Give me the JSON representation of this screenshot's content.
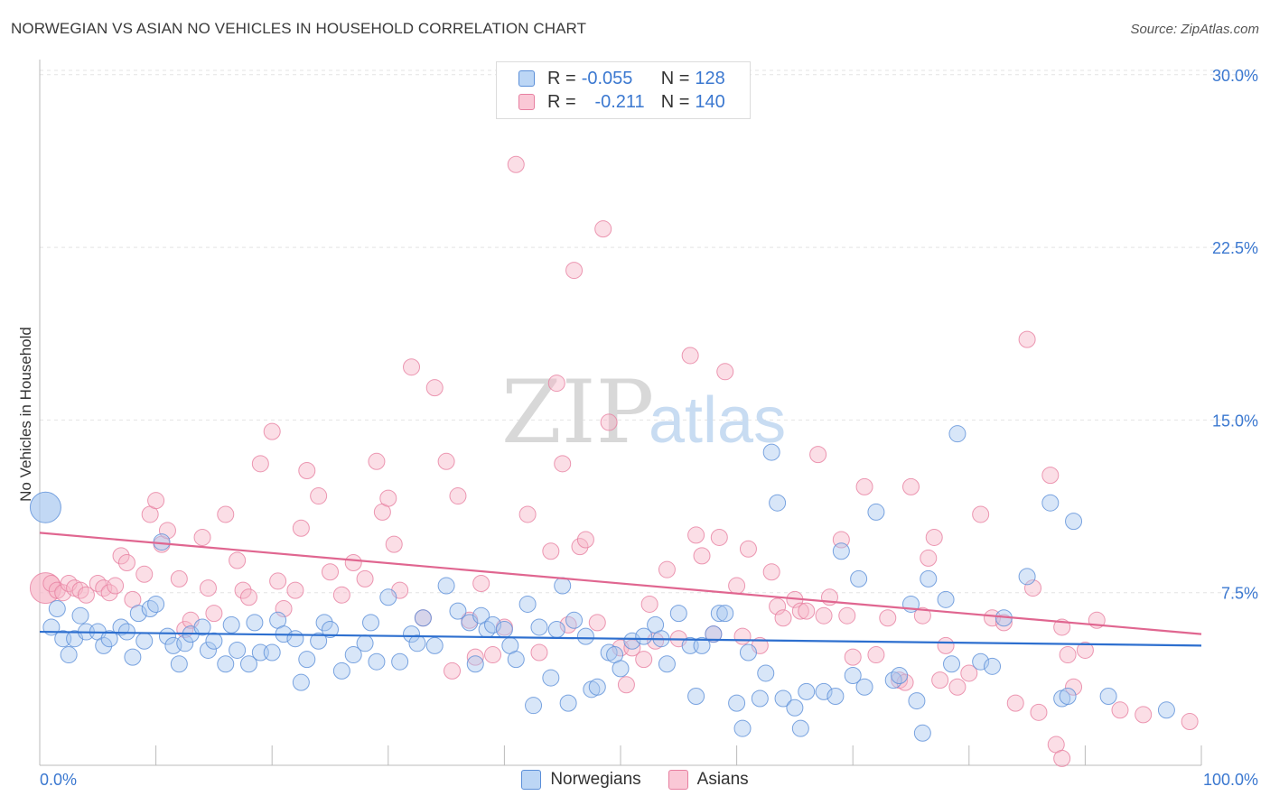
{
  "title": "NORWEGIAN VS ASIAN NO VEHICLES IN HOUSEHOLD CORRELATION CHART",
  "source": "Source: ZipAtlas.com",
  "watermark": {
    "zip": "ZIP",
    "atlas": "atlas"
  },
  "legend_top": [
    {
      "r_label": "R = ",
      "r_value": "-0.055",
      "n_label": "N = ",
      "n_value": "128"
    },
    {
      "r_label": "R = ",
      "r_value": "-0.211",
      "n_label": "N = ",
      "n_value": "140"
    }
  ],
  "colors": {
    "norwegians_fill": "#a8c8f0",
    "norwegians_stroke": "#5b8fd8",
    "norwegians_line": "#2d6fcf",
    "asians_fill": "#f7b6c8",
    "asians_stroke": "#e77fa0",
    "asians_line": "#e06690",
    "axis_label": "#3b78d0",
    "grid": "#e4e4e4"
  },
  "chart_data": {
    "type": "scatter",
    "title": "NORWEGIAN VS ASIAN NO VEHICLES IN HOUSEHOLD CORRELATION CHART",
    "xlabel": "",
    "ylabel": "No Vehicles in Household",
    "xlim": [
      0,
      100
    ],
    "ylim": [
      0,
      30.5
    ],
    "x_tick_labels": [
      "0.0%",
      "100.0%"
    ],
    "y_ticks": [
      7.5,
      15.0,
      22.5,
      30.0
    ],
    "y_tick_labels": [
      "7.5%",
      "15.0%",
      "22.5%",
      "30.0%"
    ],
    "grid": true,
    "legend_position": "bottom",
    "series": [
      {
        "name": "Norwegians",
        "trend": {
          "x0": 0,
          "y0": 5.8,
          "x1": 100,
          "y1": 5.2
        },
        "points": [
          [
            0.5,
            11.2,
            "big"
          ],
          [
            1.0,
            6.0
          ],
          [
            1.5,
            6.8
          ],
          [
            2.0,
            5.5
          ],
          [
            2.5,
            4.8
          ],
          [
            3.0,
            5.5
          ],
          [
            3.5,
            6.5
          ],
          [
            4.0,
            5.8
          ],
          [
            5.0,
            5.8
          ],
          [
            5.5,
            5.2
          ],
          [
            6.0,
            5.5
          ],
          [
            7.0,
            6.0
          ],
          [
            7.5,
            5.8
          ],
          [
            8.0,
            4.7
          ],
          [
            8.5,
            6.6
          ],
          [
            9.0,
            5.4
          ],
          [
            9.5,
            6.8
          ],
          [
            10.0,
            7.0
          ],
          [
            10.5,
            9.7
          ],
          [
            11.0,
            5.6
          ],
          [
            11.5,
            5.2
          ],
          [
            12.0,
            4.4
          ],
          [
            12.5,
            5.3
          ],
          [
            13.0,
            5.7
          ],
          [
            14.0,
            6.0
          ],
          [
            14.5,
            5.0
          ],
          [
            15.0,
            5.4
          ],
          [
            16.0,
            4.4
          ],
          [
            16.5,
            6.1
          ],
          [
            17.0,
            5.0
          ],
          [
            18.0,
            4.4
          ],
          [
            18.5,
            6.2
          ],
          [
            19.0,
            4.9
          ],
          [
            20.0,
            4.9
          ],
          [
            20.5,
            6.3
          ],
          [
            21.0,
            5.7
          ],
          [
            22.0,
            5.5
          ],
          [
            22.5,
            3.6
          ],
          [
            23.0,
            4.6
          ],
          [
            24.0,
            5.4
          ],
          [
            24.5,
            6.2
          ],
          [
            25.0,
            5.9
          ],
          [
            26.0,
            4.1
          ],
          [
            27.0,
            4.8
          ],
          [
            28.0,
            5.3
          ],
          [
            28.5,
            6.2
          ],
          [
            29.0,
            4.5
          ],
          [
            30.0,
            7.3
          ],
          [
            31.0,
            4.5
          ],
          [
            32.0,
            5.7
          ],
          [
            32.5,
            5.3
          ],
          [
            33.0,
            6.4
          ],
          [
            34.0,
            5.2
          ],
          [
            35.0,
            7.8
          ],
          [
            36.0,
            6.7
          ],
          [
            37.0,
            6.2
          ],
          [
            37.5,
            4.4
          ],
          [
            38.0,
            6.5
          ],
          [
            38.5,
            5.9
          ],
          [
            39.0,
            6.1
          ],
          [
            40.0,
            5.9
          ],
          [
            40.5,
            5.2
          ],
          [
            41.0,
            4.6
          ],
          [
            42.0,
            7.0
          ],
          [
            42.5,
            2.6
          ],
          [
            43.0,
            6.0
          ],
          [
            44.0,
            3.8
          ],
          [
            44.5,
            5.9
          ],
          [
            45.0,
            7.8
          ],
          [
            45.5,
            2.7
          ],
          [
            46.0,
            6.3
          ],
          [
            47.0,
            5.6
          ],
          [
            47.5,
            3.3
          ],
          [
            48.0,
            3.4
          ],
          [
            49.0,
            4.9
          ],
          [
            49.5,
            4.8
          ],
          [
            50.0,
            4.2
          ],
          [
            51.0,
            5.4
          ],
          [
            52.0,
            5.6
          ],
          [
            53.0,
            6.1
          ],
          [
            53.5,
            5.5
          ],
          [
            54.0,
            4.4
          ],
          [
            55.0,
            6.6
          ],
          [
            56.0,
            5.2
          ],
          [
            56.5,
            3.0
          ],
          [
            57.0,
            5.2
          ],
          [
            58.0,
            5.7
          ],
          [
            58.5,
            6.6
          ],
          [
            59.0,
            6.6
          ],
          [
            60.0,
            2.7
          ],
          [
            60.5,
            1.6
          ],
          [
            61.0,
            4.9
          ],
          [
            62.0,
            2.9
          ],
          [
            62.5,
            4.0
          ],
          [
            63.0,
            13.6
          ],
          [
            63.5,
            11.4
          ],
          [
            64.0,
            2.9
          ],
          [
            65.0,
            2.5
          ],
          [
            65.5,
            1.6
          ],
          [
            66.0,
            3.2
          ],
          [
            67.5,
            3.2
          ],
          [
            68.5,
            3.0
          ],
          [
            69.0,
            9.3
          ],
          [
            70.0,
            3.9
          ],
          [
            70.5,
            8.1
          ],
          [
            71.0,
            3.4
          ],
          [
            72.0,
            11.0
          ],
          [
            73.5,
            3.7
          ],
          [
            74.0,
            3.9
          ],
          [
            75.0,
            7.0
          ],
          [
            75.5,
            2.8
          ],
          [
            76.0,
            1.4
          ],
          [
            76.5,
            8.1
          ],
          [
            78.0,
            7.2
          ],
          [
            78.5,
            4.4
          ],
          [
            79.0,
            14.4
          ],
          [
            81.0,
            4.5
          ],
          [
            82.0,
            4.3
          ],
          [
            83.0,
            6.4
          ],
          [
            85.0,
            8.2
          ],
          [
            87.0,
            11.4
          ],
          [
            88.0,
            2.9
          ],
          [
            88.5,
            3.0
          ],
          [
            89.0,
            10.6
          ],
          [
            92.0,
            3.0
          ],
          [
            97.0,
            2.4
          ]
        ]
      },
      {
        "name": "Asians",
        "trend": {
          "x0": 0,
          "y0": 10.1,
          "x1": 100,
          "y1": 5.7
        },
        "points": [
          [
            0.5,
            7.7,
            "big"
          ],
          [
            1.0,
            7.9
          ],
          [
            1.5,
            7.6
          ],
          [
            2.0,
            7.5
          ],
          [
            2.5,
            7.9
          ],
          [
            3.0,
            7.7
          ],
          [
            3.5,
            7.6
          ],
          [
            4.0,
            7.4
          ],
          [
            5.0,
            7.9
          ],
          [
            5.5,
            7.7
          ],
          [
            6.0,
            7.5
          ],
          [
            6.5,
            7.8
          ],
          [
            7.0,
            9.1
          ],
          [
            7.5,
            8.8
          ],
          [
            8.0,
            7.2
          ],
          [
            9.0,
            8.3
          ],
          [
            9.5,
            10.9
          ],
          [
            10.0,
            11.5
          ],
          [
            10.5,
            9.6
          ],
          [
            11.0,
            10.2
          ],
          [
            12.0,
            8.1
          ],
          [
            12.5,
            5.9
          ],
          [
            13.0,
            6.3
          ],
          [
            14.0,
            9.9
          ],
          [
            14.5,
            7.7
          ],
          [
            15.0,
            6.6
          ],
          [
            16.0,
            10.9
          ],
          [
            17.0,
            8.9
          ],
          [
            17.5,
            7.6
          ],
          [
            18.0,
            7.3
          ],
          [
            19.0,
            13.1
          ],
          [
            20.0,
            14.5
          ],
          [
            20.5,
            8.0
          ],
          [
            21.0,
            6.8
          ],
          [
            22.0,
            7.6
          ],
          [
            22.5,
            10.3
          ],
          [
            23.0,
            12.8
          ],
          [
            24.0,
            11.7
          ],
          [
            25.0,
            8.4
          ],
          [
            26.0,
            7.4
          ],
          [
            27.0,
            8.8
          ],
          [
            28.0,
            8.1
          ],
          [
            29.0,
            13.2
          ],
          [
            29.5,
            11.0
          ],
          [
            30.0,
            11.6
          ],
          [
            30.5,
            9.6
          ],
          [
            31.0,
            7.6
          ],
          [
            32.0,
            17.3
          ],
          [
            33.0,
            6.4
          ],
          [
            34.0,
            16.4
          ],
          [
            35.0,
            13.2
          ],
          [
            35.5,
            4.1
          ],
          [
            36.0,
            11.7
          ],
          [
            37.0,
            6.3
          ],
          [
            37.5,
            4.7
          ],
          [
            38.0,
            7.9
          ],
          [
            39.0,
            4.8
          ],
          [
            40.0,
            6.0
          ],
          [
            41.0,
            26.1
          ],
          [
            42.0,
            10.9
          ],
          [
            43.0,
            4.9
          ],
          [
            44.0,
            9.3
          ],
          [
            44.5,
            16.6
          ],
          [
            45.0,
            13.1
          ],
          [
            45.5,
            6.1
          ],
          [
            46.0,
            21.5
          ],
          [
            46.5,
            9.5
          ],
          [
            47.0,
            9.8
          ],
          [
            48.0,
            6.2
          ],
          [
            48.5,
            23.3
          ],
          [
            49.0,
            14.9
          ],
          [
            50.0,
            5.1
          ],
          [
            50.5,
            3.5
          ],
          [
            51.0,
            5.1
          ],
          [
            52.0,
            4.6
          ],
          [
            52.5,
            7.0
          ],
          [
            53.0,
            5.4
          ],
          [
            54.0,
            8.5
          ],
          [
            55.0,
            5.5
          ],
          [
            56.0,
            17.8
          ],
          [
            56.5,
            10.0
          ],
          [
            57.0,
            9.1
          ],
          [
            58.0,
            5.7
          ],
          [
            58.5,
            9.9
          ],
          [
            59.0,
            17.1
          ],
          [
            60.0,
            7.8
          ],
          [
            60.5,
            5.6
          ],
          [
            61.0,
            9.4
          ],
          [
            62.0,
            5.2
          ],
          [
            63.0,
            8.4
          ],
          [
            63.5,
            6.9
          ],
          [
            64.0,
            6.4
          ],
          [
            65.0,
            7.2
          ],
          [
            65.5,
            6.7
          ],
          [
            66.0,
            6.7
          ],
          [
            67.0,
            13.5
          ],
          [
            67.5,
            6.5
          ],
          [
            68.0,
            7.3
          ],
          [
            69.0,
            9.8
          ],
          [
            69.5,
            6.5
          ],
          [
            70.0,
            4.7
          ],
          [
            71.0,
            12.1
          ],
          [
            72.0,
            4.8
          ],
          [
            73.0,
            6.4
          ],
          [
            74.0,
            3.7
          ],
          [
            74.5,
            3.6
          ],
          [
            75.0,
            12.1
          ],
          [
            76.0,
            6.5
          ],
          [
            76.5,
            9.0
          ],
          [
            77.0,
            9.9
          ],
          [
            77.5,
            3.7
          ],
          [
            78.0,
            5.2
          ],
          [
            79.0,
            3.4
          ],
          [
            80.0,
            4.0
          ],
          [
            81.0,
            10.9
          ],
          [
            82.0,
            6.4
          ],
          [
            83.0,
            6.2
          ],
          [
            84.0,
            2.7
          ],
          [
            85.0,
            18.5
          ],
          [
            85.5,
            7.7
          ],
          [
            86.0,
            2.3
          ],
          [
            87.0,
            12.6
          ],
          [
            87.5,
            0.9
          ],
          [
            88.0,
            6.0
          ],
          [
            88.5,
            4.8
          ],
          [
            89.0,
            3.4
          ],
          [
            90.0,
            5.0
          ],
          [
            91.0,
            6.3
          ],
          [
            93.0,
            2.4
          ],
          [
            95.0,
            2.2
          ],
          [
            99.0,
            1.9
          ],
          [
            88.0,
            0.3
          ]
        ]
      }
    ]
  },
  "legend_bottom": [
    {
      "label": "Norwegians"
    },
    {
      "label": "Asians"
    }
  ]
}
